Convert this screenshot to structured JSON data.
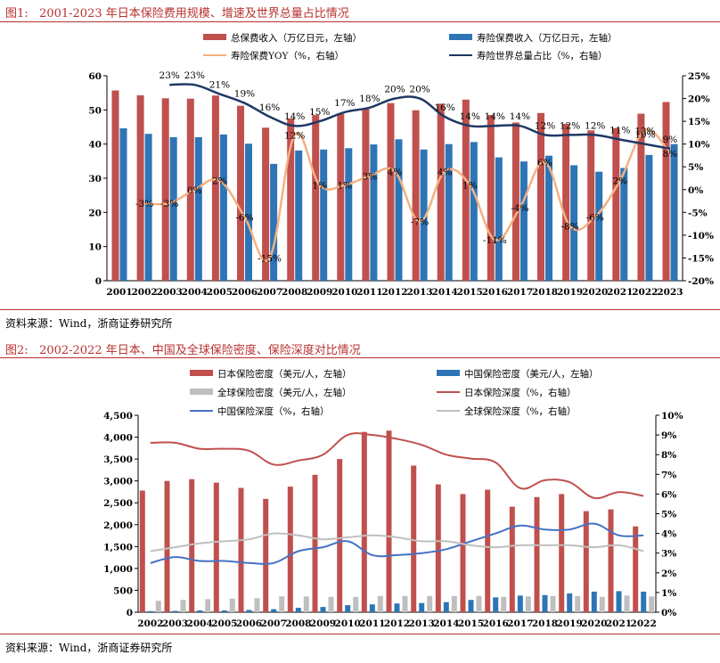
{
  "figure1": {
    "label": "图1:",
    "title": "2001-2023 年日本保险费用规模、增速及世界总量占比情况",
    "source": "资料来源：Wind，浙商证券研究所"
  },
  "figure2": {
    "label": "图2:",
    "title": "2002-2022 年日本、中国及全球保险密度、保险深度对比情况",
    "source": "资料来源：Wind，浙商证券研究所"
  },
  "colors": {
    "red_bar": "#c0504d",
    "blue_bar": "#2e75b6",
    "gray_bar": "#bfbfbf",
    "orange_line": "#f4b183",
    "navy_line": "#1f3864",
    "red_line": "#c0504d",
    "blue_line": "#4472c4",
    "gray_line": "#bfbfbf",
    "accent": "#b8312f"
  },
  "chart_data": [
    {
      "type": "bar",
      "id": "chart1",
      "title": "2001-2023 年日本保险费用规模、增速及世界总量占比情况",
      "categories": [
        "2001",
        "2002",
        "2003",
        "2004",
        "2005",
        "2006",
        "2007",
        "2008",
        "2009",
        "2010",
        "2011",
        "2012",
        "2013",
        "2014",
        "2015",
        "2016",
        "2017",
        "2018",
        "2019",
        "2020",
        "2021",
        "2022",
        "2023"
      ],
      "ylim_left": [
        0,
        60
      ],
      "yticks_left": [
        "0",
        "10",
        "20",
        "30",
        "40",
        "50",
        "60"
      ],
      "ylim_right": [
        -20,
        25
      ],
      "yticks_right": [
        "-20%",
        "-15%",
        "-10%",
        "-5%",
        "0%",
        "5%",
        "10%",
        "15%",
        "20%",
        "25%"
      ],
      "legend_position": "top",
      "series": [
        {
          "name": "总保费收入（万亿日元，左轴）",
          "kind": "bar",
          "axis": "left",
          "color": "#c0504d",
          "values": [
            55.7,
            54.3,
            53.4,
            53.3,
            54.2,
            51.2,
            44.8,
            47.5,
            48.5,
            48.8,
            50.3,
            52.0,
            49.9,
            51.8,
            53.0,
            48.5,
            46.3,
            49.1,
            45.9,
            44.0,
            44.7,
            48.9,
            52.3
          ]
        },
        {
          "name": "寿险保费收入（万亿日元，左轴）",
          "kind": "bar",
          "axis": "left",
          "color": "#2e75b6",
          "values": [
            44.6,
            43.0,
            42.0,
            42.0,
            42.8,
            40.1,
            34.2,
            38.1,
            38.4,
            38.8,
            39.9,
            41.4,
            38.4,
            40.0,
            40.6,
            36.1,
            34.9,
            36.6,
            33.8,
            31.9,
            33.0,
            36.8,
            40.0
          ]
        },
        {
          "name": "寿险保费YOY（%，右轴）",
          "kind": "line",
          "axis": "right",
          "color": "#f4b183",
          "values": [
            null,
            -3,
            -3,
            0,
            2,
            -6,
            -15,
            12,
            1,
            1,
            3,
            4,
            -7,
            4,
            1,
            -11,
            -4,
            6,
            -8,
            -6,
            2,
            13,
            8
          ],
          "labels": [
            "",
            "-3%",
            "-3%",
            "0%",
            "2%",
            "-6%",
            "-15%",
            "12%",
            "1%",
            "1%",
            "3%",
            "4%",
            "-7%",
            "4%",
            "1%",
            "-11%",
            "-4%",
            "6%",
            "-8%",
            "-6%",
            "2%",
            "13%",
            "8%"
          ]
        },
        {
          "name": "寿险世界总量占比（%，右轴）",
          "kind": "line",
          "axis": "right",
          "color": "#1f3864",
          "values": [
            null,
            null,
            23,
            23,
            21,
            19,
            16,
            14,
            15,
            17,
            18,
            20,
            20,
            16,
            14,
            14,
            14,
            12,
            12,
            12,
            11,
            10,
            9
          ],
          "labels": [
            "",
            "",
            "23%",
            "23%",
            "21%",
            "19%",
            "16%",
            "14%",
            "15%",
            "17%",
            "18%",
            "20%",
            "20%",
            "16%",
            "14%",
            "14%",
            "14%",
            "12%",
            "12%",
            "12%",
            "11%",
            "10%",
            "9%"
          ]
        }
      ]
    },
    {
      "type": "bar",
      "id": "chart2",
      "title": "2002-2022 年日本、中国及全球保险密度、保险深度对比情况",
      "categories": [
        "2002",
        "2003",
        "2004",
        "2005",
        "2006",
        "2007",
        "2008",
        "2009",
        "2010",
        "2011",
        "2012",
        "2013",
        "2014",
        "2015",
        "2016",
        "2017",
        "2018",
        "2019",
        "2020",
        "2021",
        "2022"
      ],
      "ylim_left": [
        0,
        4500
      ],
      "yticks_left": [
        "0",
        "500",
        "1,000",
        "1,500",
        "2,000",
        "2,500",
        "3,000",
        "3,500",
        "4,000",
        "4,500"
      ],
      "ylim_right": [
        0,
        10
      ],
      "yticks_right": [
        "0%",
        "1%",
        "2%",
        "3%",
        "4%",
        "5%",
        "6%",
        "7%",
        "8%",
        "9%",
        "10%"
      ],
      "legend_position": "top",
      "series": [
        {
          "name": "日本保险密度（美元/人，左轴）",
          "kind": "bar",
          "axis": "left",
          "color": "#c0504d",
          "values": [
            2780,
            3000,
            3040,
            2960,
            2840,
            2590,
            2870,
            3140,
            3500,
            4120,
            4150,
            3350,
            2920,
            2700,
            2800,
            2410,
            2630,
            2700,
            2310,
            2350,
            1960
          ]
        },
        {
          "name": "中国保险密度（美元/人，左轴）",
          "kind": "bar",
          "axis": "left",
          "color": "#2e75b6",
          "values": [
            25,
            30,
            40,
            40,
            50,
            70,
            100,
            120,
            160,
            180,
            200,
            210,
            230,
            280,
            340,
            380,
            390,
            430,
            470,
            480,
            470
          ]
        },
        {
          "name": "全球保险密度（美元/人，左轴）",
          "kind": "bar",
          "axis": "left",
          "color": "#bfbfbf",
          "values": [
            260,
            280,
            300,
            310,
            320,
            360,
            360,
            350,
            350,
            370,
            370,
            370,
            370,
            370,
            350,
            360,
            370,
            370,
            350,
            380,
            360
          ]
        },
        {
          "name": "日本保险深度（%，右轴）",
          "kind": "line",
          "axis": "right",
          "color": "#c0504d",
          "values": [
            8.6,
            8.6,
            8.3,
            8.3,
            8.2,
            7.5,
            7.7,
            8.0,
            9.0,
            9.0,
            8.8,
            8.5,
            8.0,
            7.8,
            7.6,
            6.3,
            6.7,
            6.6,
            5.8,
            6.1,
            5.9
          ]
        },
        {
          "name": "中国保险深度（%，右轴）",
          "kind": "line",
          "axis": "right",
          "color": "#4472c4",
          "values": [
            2.5,
            2.8,
            2.6,
            2.6,
            2.5,
            2.5,
            3.1,
            3.3,
            3.6,
            2.9,
            2.9,
            3.0,
            3.2,
            3.6,
            4.0,
            4.4,
            4.2,
            4.2,
            4.5,
            3.9,
            3.9
          ]
        },
        {
          "name": "全球保险深度（%，右轴）",
          "kind": "line",
          "axis": "right",
          "color": "#bfbfbf",
          "values": [
            3.1,
            3.3,
            3.5,
            3.6,
            3.7,
            4.0,
            3.9,
            3.7,
            3.8,
            3.9,
            3.8,
            3.6,
            3.6,
            3.4,
            3.3,
            3.4,
            3.4,
            3.4,
            3.3,
            3.4,
            3.1
          ]
        }
      ]
    }
  ]
}
